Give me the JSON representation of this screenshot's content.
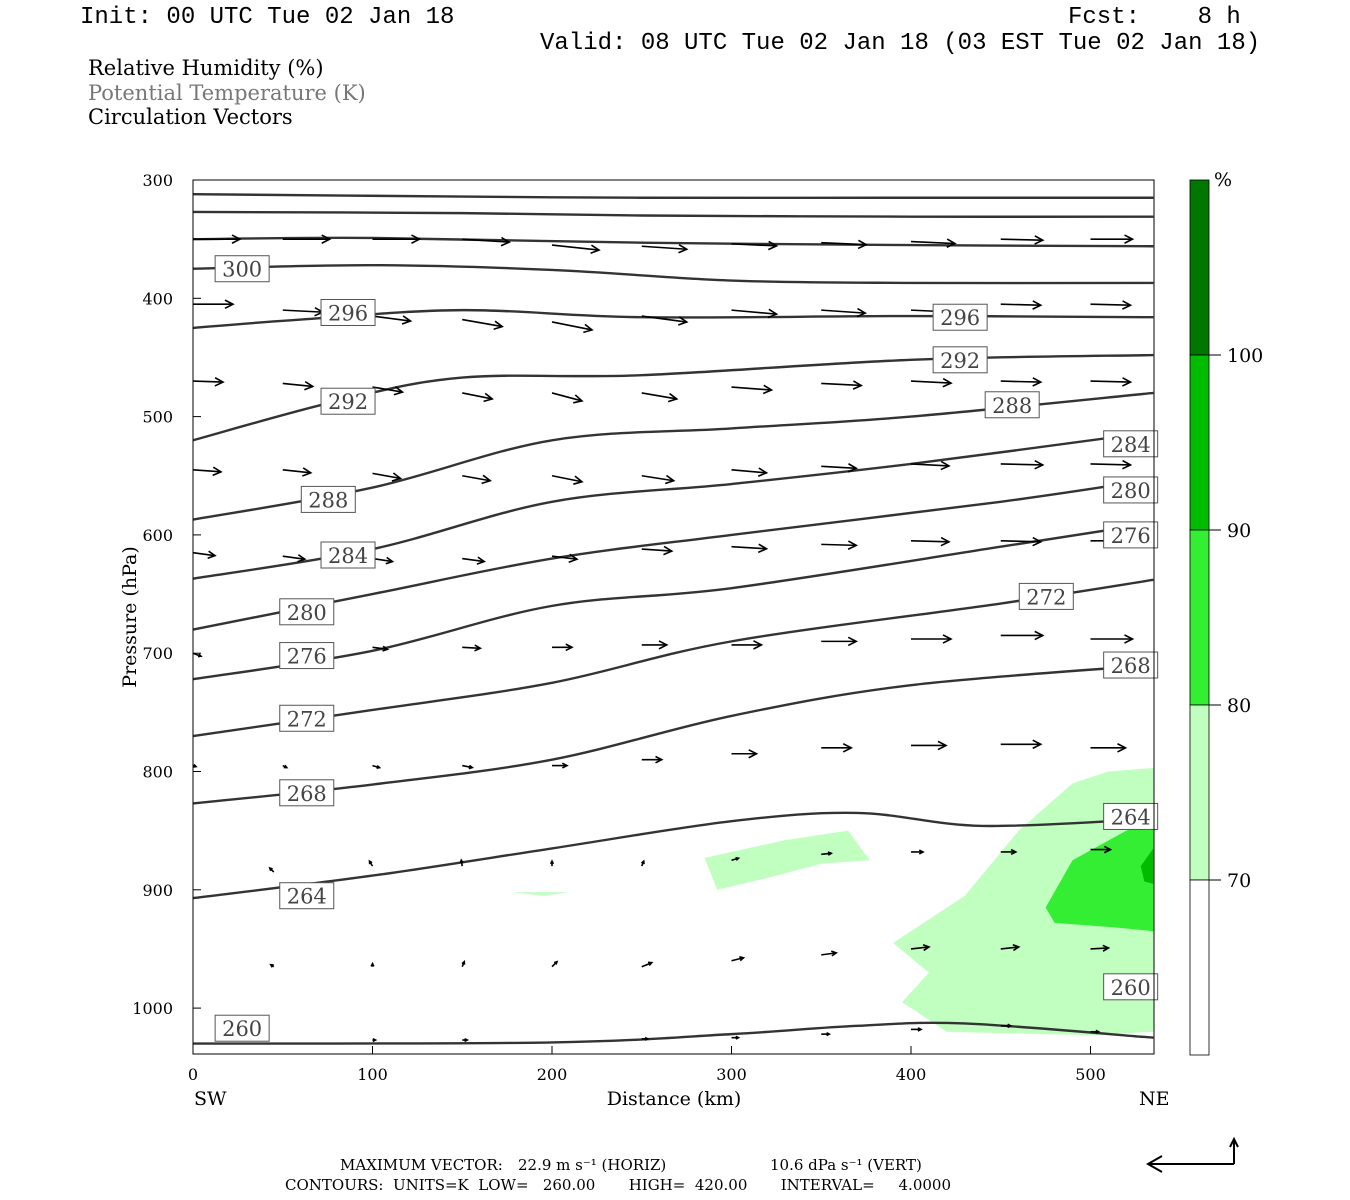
{
  "header": {
    "init": "Init: 00 UTC Tue 02 Jan 18",
    "fcst": "Fcst:    8 h",
    "valid": "Valid: 08 UTC Tue 02 Jan 18 (03 EST Tue 02 Jan 18)"
  },
  "legend": {
    "rh": "Relative Humidity (%)",
    "theta": "Potential Temperature (K)",
    "vectors": "Circulation Vectors"
  },
  "footer": {
    "max_vector_label": "MAXIMUM VECTOR:",
    "max_horiz": "22.9 m s⁻¹ (HORIZ)",
    "max_vert": "10.6 dPa s⁻¹ (VERT)",
    "contours": "CONTOURS:  UNITS=K  LOW=   260.00       HIGH=  420.00       INTERVAL=     4.0000"
  },
  "colors": {
    "contour": "#333333",
    "rh_70_80": "#c0ffc0",
    "rh_80_90": "#33ee33",
    "rh_90_100": "#00bb00",
    "rh_100": "#007700"
  },
  "chart_data": {
    "type": "contour",
    "xlabel": "Distance (km)",
    "ylabel": "Pressure (hPa)",
    "x_left_label": "SW",
    "x_right_label": "NE",
    "xlim": [
      0,
      535
    ],
    "ylim": [
      300,
      1030
    ],
    "y_scale": "linear (pressure increasing downward)",
    "x_ticks": [
      0,
      100,
      200,
      300,
      400,
      500
    ],
    "y_ticks": [
      300,
      400,
      500,
      600,
      700,
      800,
      900,
      1000
    ],
    "colorbar": {
      "unit": "%",
      "levels": [
        70,
        80,
        90,
        100
      ]
    },
    "theta_contours": [
      {
        "level": 300,
        "points": [
          [
            0,
            312
          ],
          [
            150,
            314
          ],
          [
            250,
            315
          ],
          [
            400,
            315
          ],
          [
            535,
            315
          ]
        ]
      },
      {
        "level": 300,
        "points": [
          [
            0,
            327
          ],
          [
            150,
            328
          ],
          [
            250,
            330
          ],
          [
            400,
            331
          ],
          [
            535,
            331
          ]
        ]
      },
      {
        "level": 300,
        "points": [
          [
            0,
            350
          ],
          [
            100,
            349
          ],
          [
            250,
            353
          ],
          [
            400,
            355
          ],
          [
            535,
            356
          ]
        ]
      },
      {
        "level": 300,
        "labels": [
          300
        ],
        "points": [
          [
            0,
            375
          ],
          [
            100,
            372
          ],
          [
            200,
            376
          ],
          [
            300,
            385
          ],
          [
            400,
            387
          ],
          [
            535,
            387
          ]
        ]
      },
      {
        "level": 296,
        "labels": [
          296,
          296
        ],
        "points": [
          [
            0,
            425
          ],
          [
            60,
            418
          ],
          [
            150,
            410
          ],
          [
            250,
            416
          ],
          [
            400,
            415
          ],
          [
            535,
            416
          ]
        ]
      },
      {
        "level": 292,
        "labels": [
          292,
          292
        ],
        "points": [
          [
            0,
            520
          ],
          [
            80,
            487
          ],
          [
            150,
            467
          ],
          [
            250,
            465
          ],
          [
            400,
            452
          ],
          [
            535,
            448
          ]
        ]
      },
      {
        "level": 288,
        "labels": [
          288,
          288
        ],
        "points": [
          [
            0,
            587
          ],
          [
            100,
            560
          ],
          [
            200,
            520
          ],
          [
            300,
            510
          ],
          [
            400,
            500
          ],
          [
            535,
            480
          ]
        ]
      },
      {
        "level": 284,
        "labels": [
          284,
          284
        ],
        "points": [
          [
            0,
            637
          ],
          [
            100,
            612
          ],
          [
            200,
            572
          ],
          [
            300,
            557
          ],
          [
            400,
            540
          ],
          [
            535,
            513
          ]
        ]
      },
      {
        "level": 280,
        "labels": [
          280,
          280
        ],
        "points": [
          [
            0,
            680
          ],
          [
            100,
            650
          ],
          [
            200,
            620
          ],
          [
            300,
            600
          ],
          [
            450,
            572
          ],
          [
            535,
            553
          ]
        ]
      },
      {
        "level": 276,
        "labels": [
          276,
          276
        ],
        "points": [
          [
            0,
            722
          ],
          [
            100,
            698
          ],
          [
            200,
            660
          ],
          [
            300,
            645
          ],
          [
            450,
            610
          ],
          [
            535,
            590
          ]
        ]
      },
      {
        "level": 272,
        "labels": [
          272,
          272
        ],
        "points": [
          [
            0,
            770
          ],
          [
            100,
            748
          ],
          [
            200,
            725
          ],
          [
            300,
            690
          ],
          [
            450,
            658
          ],
          [
            535,
            638
          ]
        ]
      },
      {
        "level": 268,
        "labels": [
          268,
          268
        ],
        "points": [
          [
            0,
            827
          ],
          [
            100,
            811
          ],
          [
            200,
            790
          ],
          [
            300,
            753
          ],
          [
            400,
            727
          ],
          [
            535,
            710
          ]
        ]
      },
      {
        "level": 264,
        "labels": [
          264,
          264
        ],
        "points": [
          [
            0,
            907
          ],
          [
            100,
            888
          ],
          [
            200,
            865
          ],
          [
            300,
            842
          ],
          [
            370,
            835
          ],
          [
            440,
            846
          ],
          [
            535,
            840
          ]
        ]
      },
      {
        "level": 260,
        "labels": [
          260,
          260
        ],
        "points": [
          [
            0,
            1030
          ],
          [
            200,
            1029
          ],
          [
            300,
            1022
          ],
          [
            370,
            1015
          ],
          [
            430,
            1013
          ],
          [
            535,
            1025
          ]
        ]
      }
    ],
    "rh_regions": [
      {
        "range": "70-80",
        "points": [
          [
            390,
            945
          ],
          [
            430,
            905
          ],
          [
            460,
            850
          ],
          [
            490,
            810
          ],
          [
            510,
            800
          ],
          [
            535,
            797
          ],
          [
            535,
            1020
          ],
          [
            500,
            1023
          ],
          [
            420,
            1020
          ],
          [
            395,
            995
          ],
          [
            410,
            970
          ]
        ]
      },
      {
        "range": "70-80",
        "points": [
          [
            285,
            873
          ],
          [
            330,
            858
          ],
          [
            365,
            850
          ],
          [
            377,
            875
          ],
          [
            350,
            878
          ],
          [
            320,
            890
          ],
          [
            292,
            900
          ]
        ]
      },
      {
        "range": "70-80",
        "points": [
          [
            178,
            902
          ],
          [
            210,
            902
          ],
          [
            195,
            905
          ]
        ]
      },
      {
        "range": "80-90",
        "points": [
          [
            475,
            915
          ],
          [
            490,
            875
          ],
          [
            520,
            850
          ],
          [
            535,
            840
          ],
          [
            535,
            935
          ],
          [
            515,
            932
          ],
          [
            480,
            928
          ]
        ]
      },
      {
        "range": "90-100",
        "points": [
          [
            528,
            880
          ],
          [
            535,
            865
          ],
          [
            535,
            895
          ],
          [
            530,
            893
          ]
        ]
      }
    ],
    "wind_vectors": [
      {
        "x": 0,
        "p": 350,
        "u": 47,
        "v": 0
      },
      {
        "x": 50,
        "p": 350,
        "u": 47,
        "v": 0
      },
      {
        "x": 100,
        "p": 350,
        "u": 47,
        "v": 0
      },
      {
        "x": 150,
        "p": 350,
        "u": 47,
        "v": -3
      },
      {
        "x": 200,
        "p": 355,
        "u": 47,
        "v": -5
      },
      {
        "x": 250,
        "p": 356,
        "u": 45,
        "v": -3
      },
      {
        "x": 300,
        "p": 354,
        "u": 45,
        "v": -2
      },
      {
        "x": 350,
        "p": 353,
        "u": 45,
        "v": -2
      },
      {
        "x": 400,
        "p": 352,
        "u": 44,
        "v": -2
      },
      {
        "x": 450,
        "p": 350,
        "u": 42,
        "v": -1
      },
      {
        "x": 500,
        "p": 350,
        "u": 42,
        "v": 0
      },
      {
        "x": 0,
        "p": 405,
        "u": 40,
        "v": 0
      },
      {
        "x": 50,
        "p": 410,
        "u": 40,
        "v": -2
      },
      {
        "x": 100,
        "p": 415,
        "u": 38,
        "v": -5
      },
      {
        "x": 150,
        "p": 418,
        "u": 40,
        "v": -7
      },
      {
        "x": 200,
        "p": 420,
        "u": 40,
        "v": -8
      },
      {
        "x": 250,
        "p": 415,
        "u": 45,
        "v": -6
      },
      {
        "x": 300,
        "p": 410,
        "u": 45,
        "v": -4
      },
      {
        "x": 350,
        "p": 410,
        "u": 44,
        "v": -3
      },
      {
        "x": 400,
        "p": 410,
        "u": 43,
        "v": -2
      },
      {
        "x": 450,
        "p": 405,
        "u": 40,
        "v": -1
      },
      {
        "x": 500,
        "p": 405,
        "u": 40,
        "v": -1
      },
      {
        "x": 0,
        "p": 470,
        "u": 30,
        "v": -1
      },
      {
        "x": 50,
        "p": 472,
        "u": 30,
        "v": -3
      },
      {
        "x": 100,
        "p": 475,
        "u": 30,
        "v": -5
      },
      {
        "x": 150,
        "p": 480,
        "u": 30,
        "v": -6
      },
      {
        "x": 200,
        "p": 480,
        "u": 30,
        "v": -8
      },
      {
        "x": 250,
        "p": 480,
        "u": 35,
        "v": -6
      },
      {
        "x": 300,
        "p": 475,
        "u": 40,
        "v": -3
      },
      {
        "x": 350,
        "p": 472,
        "u": 40,
        "v": -2
      },
      {
        "x": 400,
        "p": 470,
        "u": 40,
        "v": -2
      },
      {
        "x": 450,
        "p": 470,
        "u": 40,
        "v": -1
      },
      {
        "x": 500,
        "p": 470,
        "u": 40,
        "v": -1
      },
      {
        "x": 0,
        "p": 545,
        "u": 28,
        "v": -2
      },
      {
        "x": 50,
        "p": 545,
        "u": 28,
        "v": -3
      },
      {
        "x": 100,
        "p": 548,
        "u": 28,
        "v": -5
      },
      {
        "x": 150,
        "p": 550,
        "u": 28,
        "v": -5
      },
      {
        "x": 200,
        "p": 550,
        "u": 30,
        "v": -6
      },
      {
        "x": 250,
        "p": 550,
        "u": 32,
        "v": -5
      },
      {
        "x": 300,
        "p": 545,
        "u": 35,
        "v": -3
      },
      {
        "x": 350,
        "p": 542,
        "u": 35,
        "v": -2
      },
      {
        "x": 400,
        "p": 540,
        "u": 38,
        "v": -2
      },
      {
        "x": 450,
        "p": 540,
        "u": 42,
        "v": -1
      },
      {
        "x": 500,
        "p": 540,
        "u": 40,
        "v": -1
      },
      {
        "x": 0,
        "p": 615,
        "u": 22,
        "v": -3
      },
      {
        "x": 50,
        "p": 618,
        "u": 22,
        "v": -3
      },
      {
        "x": 100,
        "p": 620,
        "u": 20,
        "v": -3
      },
      {
        "x": 150,
        "p": 620,
        "u": 22,
        "v": -3
      },
      {
        "x": 200,
        "p": 618,
        "u": 25,
        "v": -3
      },
      {
        "x": 250,
        "p": 612,
        "u": 30,
        "v": -2
      },
      {
        "x": 300,
        "p": 610,
        "u": 35,
        "v": -2
      },
      {
        "x": 350,
        "p": 608,
        "u": 35,
        "v": -1
      },
      {
        "x": 400,
        "p": 605,
        "u": 38,
        "v": -1
      },
      {
        "x": 450,
        "p": 605,
        "u": 40,
        "v": -1
      },
      {
        "x": 500,
        "p": 605,
        "u": 40,
        "v": 0
      },
      {
        "x": 0,
        "p": 700,
        "u": 8,
        "v": -3
      },
      {
        "x": 100,
        "p": 695,
        "u": 15,
        "v": -2
      },
      {
        "x": 150,
        "p": 695,
        "u": 18,
        "v": -1
      },
      {
        "x": 200,
        "p": 695,
        "u": 20,
        "v": 0
      },
      {
        "x": 250,
        "p": 693,
        "u": 25,
        "v": 0
      },
      {
        "x": 300,
        "p": 693,
        "u": 30,
        "v": 0
      },
      {
        "x": 350,
        "p": 690,
        "u": 35,
        "v": 0
      },
      {
        "x": 400,
        "p": 688,
        "u": 40,
        "v": 0
      },
      {
        "x": 450,
        "p": 685,
        "u": 42,
        "v": 0
      },
      {
        "x": 500,
        "p": 688,
        "u": 42,
        "v": 0
      },
      {
        "x": 0,
        "p": 795,
        "u": 3,
        "v": -1
      },
      {
        "x": 50,
        "p": 795,
        "u": 4,
        "v": -2
      },
      {
        "x": 100,
        "p": 795,
        "u": 7,
        "v": -2
      },
      {
        "x": 150,
        "p": 795,
        "u": 10,
        "v": -2
      },
      {
        "x": 200,
        "p": 795,
        "u": 15,
        "v": 0
      },
      {
        "x": 250,
        "p": 790,
        "u": 20,
        "v": 0
      },
      {
        "x": 300,
        "p": 785,
        "u": 25,
        "v": 0
      },
      {
        "x": 350,
        "p": 780,
        "u": 30,
        "v": 0
      },
      {
        "x": 400,
        "p": 778,
        "u": 35,
        "v": 0
      },
      {
        "x": 450,
        "p": 777,
        "u": 40,
        "v": 0
      },
      {
        "x": 500,
        "p": 780,
        "u": 35,
        "v": 0
      },
      {
        "x": 45,
        "p": 885,
        "u": -4,
        "v": 4
      },
      {
        "x": 100,
        "p": 880,
        "u": -3,
        "v": 5
      },
      {
        "x": 150,
        "p": 880,
        "u": -1,
        "v": 6
      },
      {
        "x": 200,
        "p": 880,
        "u": 0,
        "v": 5
      },
      {
        "x": 250,
        "p": 880,
        "u": 2,
        "v": 5
      },
      {
        "x": 300,
        "p": 875,
        "u": 7,
        "v": 2
      },
      {
        "x": 350,
        "p": 870,
        "u": 10,
        "v": 1
      },
      {
        "x": 400,
        "p": 868,
        "u": 12,
        "v": 0
      },
      {
        "x": 450,
        "p": 868,
        "u": 15,
        "v": 0
      },
      {
        "x": 500,
        "p": 866,
        "u": 20,
        "v": 0
      },
      {
        "x": 45,
        "p": 965,
        "u": -3,
        "v": 2
      },
      {
        "x": 100,
        "p": 965,
        "u": 0,
        "v": 3
      },
      {
        "x": 150,
        "p": 965,
        "u": 2,
        "v": 5
      },
      {
        "x": 200,
        "p": 965,
        "u": 5,
        "v": 5
      },
      {
        "x": 250,
        "p": 965,
        "u": 10,
        "v": 4
      },
      {
        "x": 300,
        "p": 960,
        "u": 12,
        "v": 3
      },
      {
        "x": 350,
        "p": 955,
        "u": 15,
        "v": 2
      },
      {
        "x": 400,
        "p": 950,
        "u": 18,
        "v": 2
      },
      {
        "x": 450,
        "p": 950,
        "u": 18,
        "v": 2
      },
      {
        "x": 500,
        "p": 950,
        "u": 18,
        "v": 1
      },
      {
        "x": 100,
        "p": 1027,
        "u": 3,
        "v": 0
      },
      {
        "x": 150,
        "p": 1027,
        "u": 5,
        "v": 0
      },
      {
        "x": 250,
        "p": 1026,
        "u": 6,
        "v": 0
      },
      {
        "x": 300,
        "p": 1025,
        "u": 7,
        "v": 0
      },
      {
        "x": 350,
        "p": 1022,
        "u": 8,
        "v": 0
      },
      {
        "x": 400,
        "p": 1018,
        "u": 10,
        "v": 0
      },
      {
        "x": 450,
        "p": 1015,
        "u": 10,
        "v": 0
      },
      {
        "x": 500,
        "p": 1020,
        "u": 8,
        "v": 0
      }
    ]
  }
}
